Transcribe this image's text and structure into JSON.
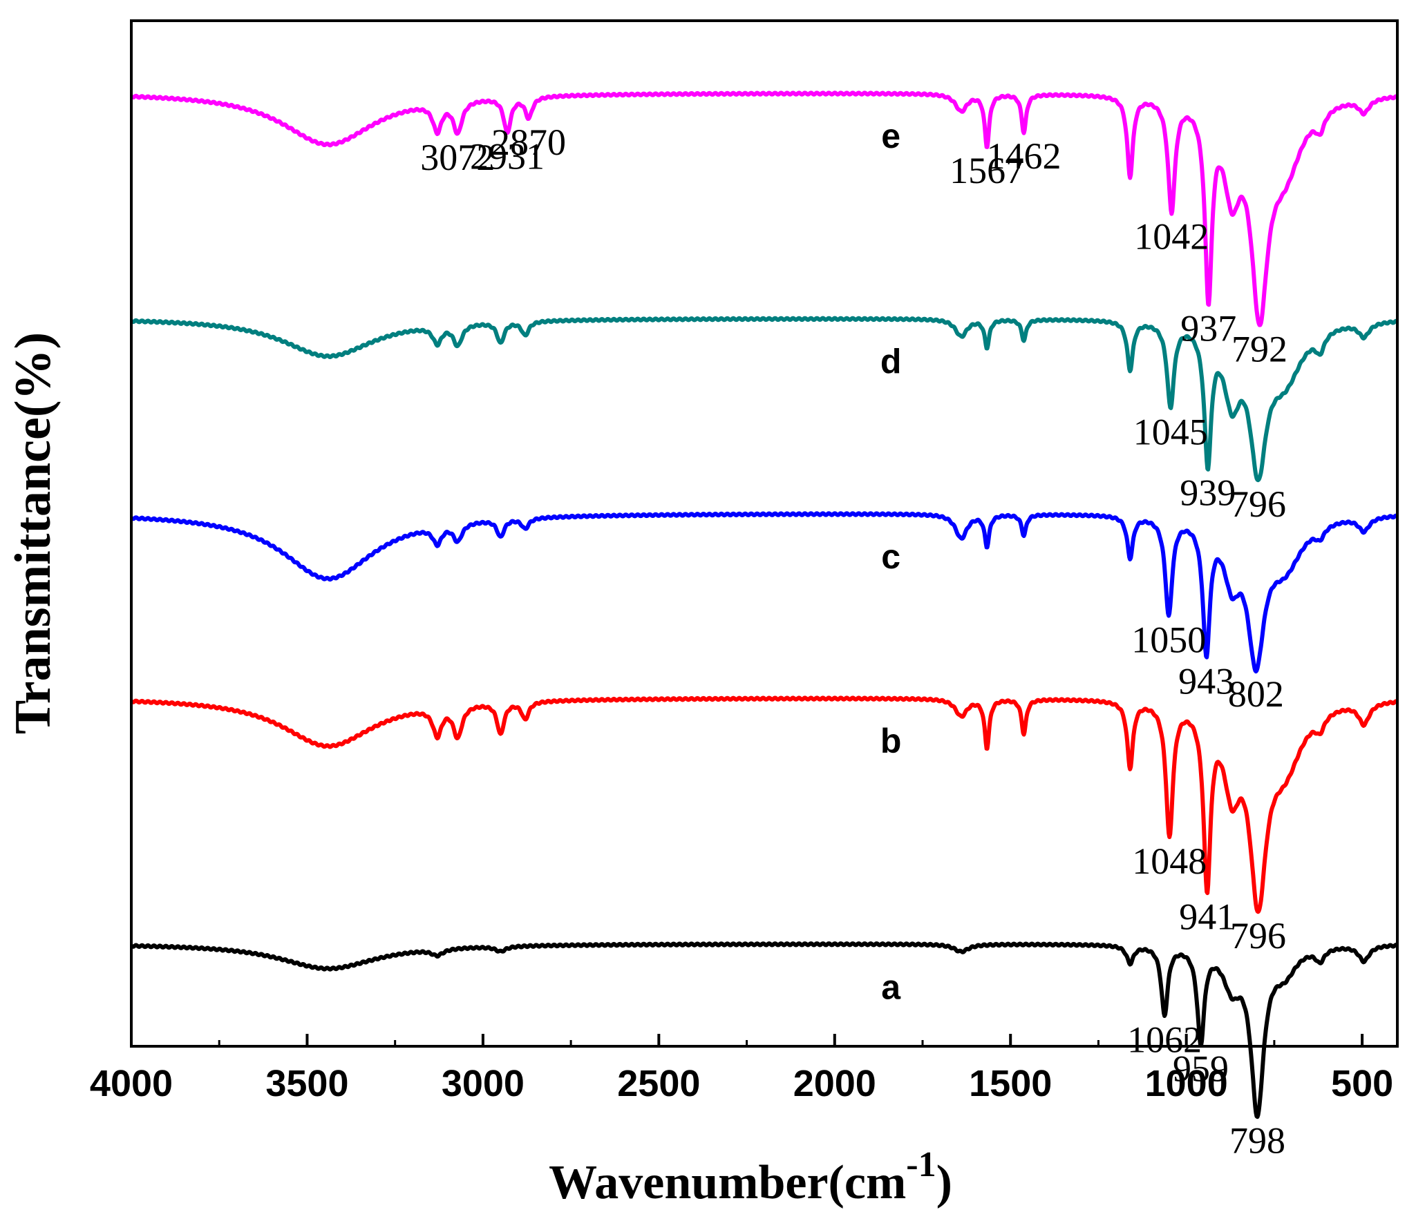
{
  "chart_data": {
    "type": "line",
    "title": "",
    "xlabel_main": "Wavenumber(cm",
    "xlabel_sup": "-1",
    "xlabel_close": ")",
    "ylabel": "Transmittance(%)",
    "xlim": [
      4000,
      400
    ],
    "x_ticks": [
      {
        "value": 4000,
        "label": "4000"
      },
      {
        "value": 3500,
        "label": "3500"
      },
      {
        "value": 3000,
        "label": "3000"
      },
      {
        "value": 2500,
        "label": "2500"
      },
      {
        "value": 2000,
        "label": "2000"
      },
      {
        "value": 1500,
        "label": "1500"
      },
      {
        "value": 1000,
        "label": "1000"
      },
      {
        "value": 500,
        "label": "500"
      }
    ],
    "y_axis": "arbitrary units, stacked offset traces, no tick labels",
    "series": [
      {
        "name": "a",
        "color": "#000000",
        "baseline": 0.1,
        "scale": 0.9,
        "label_pos": 1840,
        "bands": [
          {
            "c": 3440,
            "w": 170,
            "d": 40
          },
          {
            "c": 3130,
            "w": 20,
            "d": 10
          },
          {
            "c": 2950,
            "w": 18,
            "d": 8
          },
          {
            "c": 1640,
            "w": 25,
            "d": 12
          },
          {
            "c": 1160,
            "w": 12,
            "d": 28
          },
          {
            "c": 1062,
            "w": 11,
            "d": 110
          },
          {
            "c": 959,
            "w": 12,
            "d": 150
          },
          {
            "c": 870,
            "w": 30,
            "d": 60
          },
          {
            "c": 798,
            "w": 22,
            "d": 260
          },
          {
            "c": 720,
            "w": 40,
            "d": 40
          },
          {
            "c": 620,
            "w": 15,
            "d": 20
          },
          {
            "c": 495,
            "w": 18,
            "d": 25
          }
        ],
        "peaks": [
          {
            "x": 1062,
            "label": "1062"
          },
          {
            "x": 959,
            "label": "959"
          },
          {
            "x": 798,
            "label": "798"
          }
        ]
      },
      {
        "name": "b",
        "color": "#ff0000",
        "baseline": 0.34,
        "scale": 1.0,
        "label_pos": 1840,
        "bands": [
          {
            "c": 3440,
            "w": 160,
            "d": 70
          },
          {
            "c": 3130,
            "w": 15,
            "d": 40
          },
          {
            "c": 3072,
            "w": 15,
            "d": 45
          },
          {
            "c": 2950,
            "w": 12,
            "d": 45
          },
          {
            "c": 2880,
            "w": 12,
            "d": 25
          },
          {
            "c": 1640,
            "w": 20,
            "d": 25
          },
          {
            "c": 1567,
            "w": 8,
            "d": 70
          },
          {
            "c": 1462,
            "w": 8,
            "d": 50
          },
          {
            "c": 1160,
            "w": 10,
            "d": 95
          },
          {
            "c": 1048,
            "w": 12,
            "d": 190
          },
          {
            "c": 941,
            "w": 12,
            "d": 250
          },
          {
            "c": 870,
            "w": 28,
            "d": 110
          },
          {
            "c": 796,
            "w": 28,
            "d": 260
          },
          {
            "c": 720,
            "w": 60,
            "d": 90
          },
          {
            "c": 620,
            "w": 15,
            "d": 20
          },
          {
            "c": 495,
            "w": 18,
            "d": 30
          }
        ],
        "peaks": [
          {
            "x": 1048,
            "label": "1048"
          },
          {
            "x": 941,
            "label": "941"
          },
          {
            "x": 796,
            "label": "796"
          }
        ]
      },
      {
        "name": "c",
        "color": "#0000ff",
        "baseline": 0.52,
        "scale": 1.0,
        "label_pos": 1840,
        "bands": [
          {
            "c": 3440,
            "w": 160,
            "d": 95
          },
          {
            "c": 3130,
            "w": 15,
            "d": 25
          },
          {
            "c": 3072,
            "w": 15,
            "d": 25
          },
          {
            "c": 2950,
            "w": 12,
            "d": 25
          },
          {
            "c": 2880,
            "w": 12,
            "d": 15
          },
          {
            "c": 1640,
            "w": 20,
            "d": 35
          },
          {
            "c": 1567,
            "w": 8,
            "d": 45
          },
          {
            "c": 1462,
            "w": 8,
            "d": 30
          },
          {
            "c": 1160,
            "w": 10,
            "d": 60
          },
          {
            "c": 1050,
            "w": 12,
            "d": 140
          },
          {
            "c": 943,
            "w": 12,
            "d": 185
          },
          {
            "c": 870,
            "w": 28,
            "d": 80
          },
          {
            "c": 802,
            "w": 28,
            "d": 190
          },
          {
            "c": 720,
            "w": 60,
            "d": 70
          },
          {
            "c": 620,
            "w": 15,
            "d": 15
          },
          {
            "c": 495,
            "w": 18,
            "d": 20
          }
        ],
        "peaks": [
          {
            "x": 1050,
            "label": "1050"
          },
          {
            "x": 943,
            "label": "943"
          },
          {
            "x": 802,
            "label": "802"
          }
        ]
      },
      {
        "name": "d",
        "color": "#007f7f",
        "baseline": 0.71,
        "scale": 1.0,
        "label_pos": 1840,
        "bands": [
          {
            "c": 3440,
            "w": 160,
            "d": 55
          },
          {
            "c": 3130,
            "w": 15,
            "d": 25
          },
          {
            "c": 3072,
            "w": 15,
            "d": 30
          },
          {
            "c": 2950,
            "w": 12,
            "d": 30
          },
          {
            "c": 2880,
            "w": 12,
            "d": 20
          },
          {
            "c": 1640,
            "w": 20,
            "d": 25
          },
          {
            "c": 1567,
            "w": 8,
            "d": 40
          },
          {
            "c": 1462,
            "w": 8,
            "d": 30
          },
          {
            "c": 1160,
            "w": 10,
            "d": 70
          },
          {
            "c": 1045,
            "w": 12,
            "d": 120
          },
          {
            "c": 939,
            "w": 12,
            "d": 190
          },
          {
            "c": 870,
            "w": 28,
            "d": 100
          },
          {
            "c": 796,
            "w": 28,
            "d": 190
          },
          {
            "c": 720,
            "w": 60,
            "d": 80
          },
          {
            "c": 620,
            "w": 15,
            "d": 25
          },
          {
            "c": 495,
            "w": 18,
            "d": 20
          }
        ],
        "peaks": [
          {
            "x": 1045,
            "label": "1045"
          },
          {
            "x": 939,
            "label": "939"
          },
          {
            "x": 796,
            "label": "796"
          }
        ]
      },
      {
        "name": "e",
        "color": "#ff00ff",
        "baseline": 0.93,
        "scale": 1.0,
        "label_pos": 1840,
        "bands": [
          {
            "c": 3440,
            "w": 160,
            "d": 75
          },
          {
            "c": 3130,
            "w": 15,
            "d": 40
          },
          {
            "c": 3072,
            "w": 15,
            "d": 45
          },
          {
            "c": 2931,
            "w": 12,
            "d": 50
          },
          {
            "c": 2870,
            "w": 12,
            "d": 30
          },
          {
            "c": 1640,
            "w": 20,
            "d": 25
          },
          {
            "c": 1567,
            "w": 8,
            "d": 75
          },
          {
            "c": 1462,
            "w": 8,
            "d": 55
          },
          {
            "c": 1160,
            "w": 10,
            "d": 115
          },
          {
            "c": 1042,
            "w": 12,
            "d": 160
          },
          {
            "c": 937,
            "w": 12,
            "d": 270
          },
          {
            "c": 870,
            "w": 28,
            "d": 120
          },
          {
            "c": 792,
            "w": 28,
            "d": 280
          },
          {
            "c": 720,
            "w": 60,
            "d": 100
          },
          {
            "c": 620,
            "w": 15,
            "d": 25
          },
          {
            "c": 495,
            "w": 18,
            "d": 20
          }
        ],
        "peaks": [
          {
            "x": 3072,
            "label": "3072"
          },
          {
            "x": 2931,
            "label": "2931"
          },
          {
            "x": 2870,
            "label": "2870"
          },
          {
            "x": 1567,
            "label": "1567"
          },
          {
            "x": 1462,
            "label": "1462"
          },
          {
            "x": 1042,
            "label": "1042"
          },
          {
            "x": 937,
            "label": "937"
          },
          {
            "x": 792,
            "label": "792"
          }
        ]
      }
    ]
  }
}
